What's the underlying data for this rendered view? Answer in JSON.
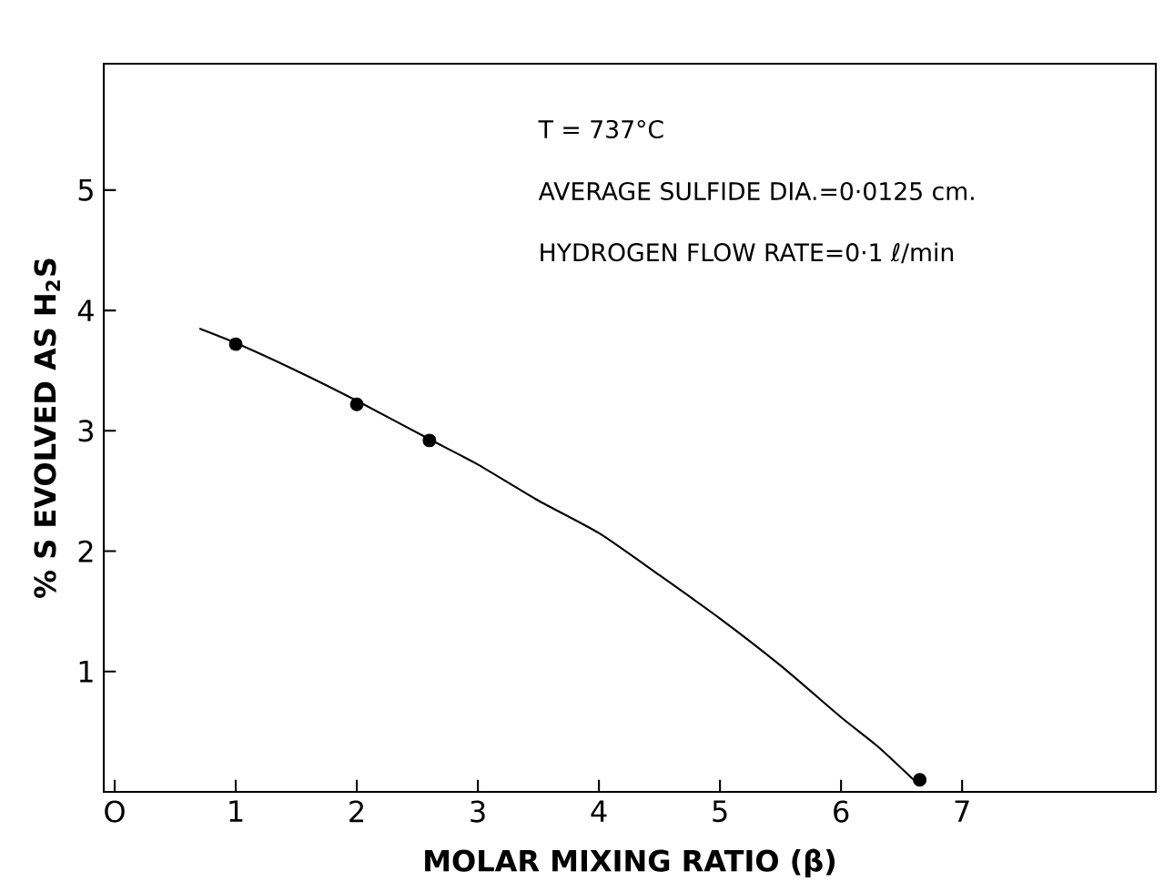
{
  "chart_data": {
    "type": "line",
    "xlabel": "MOLAR MIXING RATIO (β)",
    "ylabel": "% S EVOLVED AS H$_{2}$S",
    "annotations": [
      "T = 737°C",
      "AVERAGE SULFIDE DIA.=0·0125 cm.",
      "HYDROGEN FLOW RATE=0·1 ℓ/min"
    ],
    "marker": "circle",
    "xlim": [
      -0.09,
      8.6
    ],
    "ylim": [
      0,
      6.05
    ],
    "xticks": [
      {
        "value": 0,
        "label": "O"
      },
      1,
      2,
      3,
      4,
      5,
      6,
      7
    ],
    "yticks": [
      1,
      2,
      3,
      4,
      5
    ],
    "series": [
      {
        "type": "scatter",
        "color": "#000000",
        "x": [
          1,
          2,
          2.6,
          6.65
        ],
        "values": [
          3.72,
          3.22,
          2.92,
          0.1
        ]
      },
      {
        "color": "#000000",
        "marker": "none",
        "x": [
          0.7,
          1,
          1.5,
          2,
          2.6,
          3,
          3.5,
          4,
          4.5,
          5,
          5.5,
          6,
          6.3,
          6.6
        ],
        "values": [
          3.85,
          3.73,
          3.5,
          3.25,
          2.93,
          2.72,
          2.42,
          2.15,
          1.8,
          1.44,
          1.05,
          0.62,
          0.38,
          0.1
        ]
      }
    ]
  }
}
